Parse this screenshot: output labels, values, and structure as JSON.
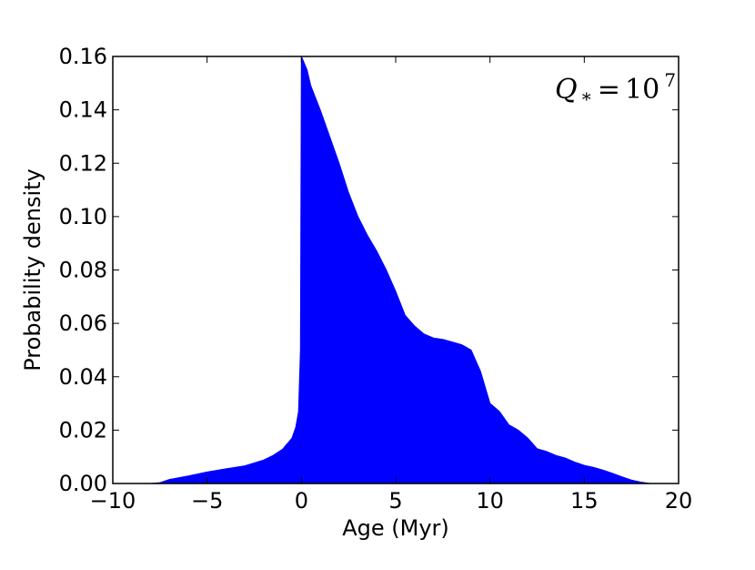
{
  "chart_data": {
    "type": "area",
    "xlabel": "Age (Myr)",
    "ylabel": "Probability density",
    "xlim": [
      -10,
      20
    ],
    "ylim": [
      0,
      0.16
    ],
    "xticks": [
      -10,
      -5,
      0,
      5,
      10,
      15,
      20
    ],
    "xtick_labels": [
      "−10",
      "−5",
      "0",
      "5",
      "10",
      "15",
      "20"
    ],
    "yticks": [
      0,
      0.02,
      0.04,
      0.06,
      0.08,
      0.1,
      0.12,
      0.14,
      0.16
    ],
    "ytick_labels": [
      "0.00",
      "0.02",
      "0.04",
      "0.06",
      "0.08",
      "0.10",
      "0.12",
      "0.14",
      "0.16"
    ],
    "grid": false,
    "fill_color": "#0000ff",
    "annotation": {
      "base": "Q",
      "subscript": "*",
      "equals": "=",
      "value": "10",
      "exponent": "7",
      "location": "top-right"
    },
    "series": [
      {
        "x": [
          -10,
          -8,
          -7.5,
          -7,
          -6,
          -5,
          -4,
          -3,
          -2,
          -1.5,
          -1,
          -0.5,
          -0.3,
          -0.15,
          -0.05,
          0,
          0.3,
          0.5,
          1,
          1.5,
          2,
          2.5,
          3,
          3.5,
          4,
          4.5,
          5,
          5.5,
          6,
          6.5,
          7,
          7.5,
          8,
          8.5,
          9,
          9.5,
          10,
          10.5,
          11,
          11.5,
          12,
          12.5,
          13,
          13.5,
          14,
          14.5,
          15,
          15.5,
          16,
          16.5,
          17,
          17.5,
          18,
          18.5,
          20
        ],
        "y": [
          0,
          0,
          0.0003,
          0.0015,
          0.0028,
          0.0043,
          0.0055,
          0.0066,
          0.0088,
          0.0105,
          0.0128,
          0.017,
          0.021,
          0.027,
          0.05,
          0.16,
          0.155,
          0.149,
          0.14,
          0.13,
          0.12,
          0.109,
          0.1,
          0.093,
          0.087,
          0.08,
          0.072,
          0.063,
          0.059,
          0.056,
          0.0545,
          0.054,
          0.053,
          0.052,
          0.05,
          0.042,
          0.03,
          0.027,
          0.022,
          0.02,
          0.017,
          0.013,
          0.012,
          0.0105,
          0.0095,
          0.008,
          0.0068,
          0.006,
          0.005,
          0.0038,
          0.0025,
          0.0013,
          0.0005,
          0,
          0
        ]
      }
    ]
  }
}
